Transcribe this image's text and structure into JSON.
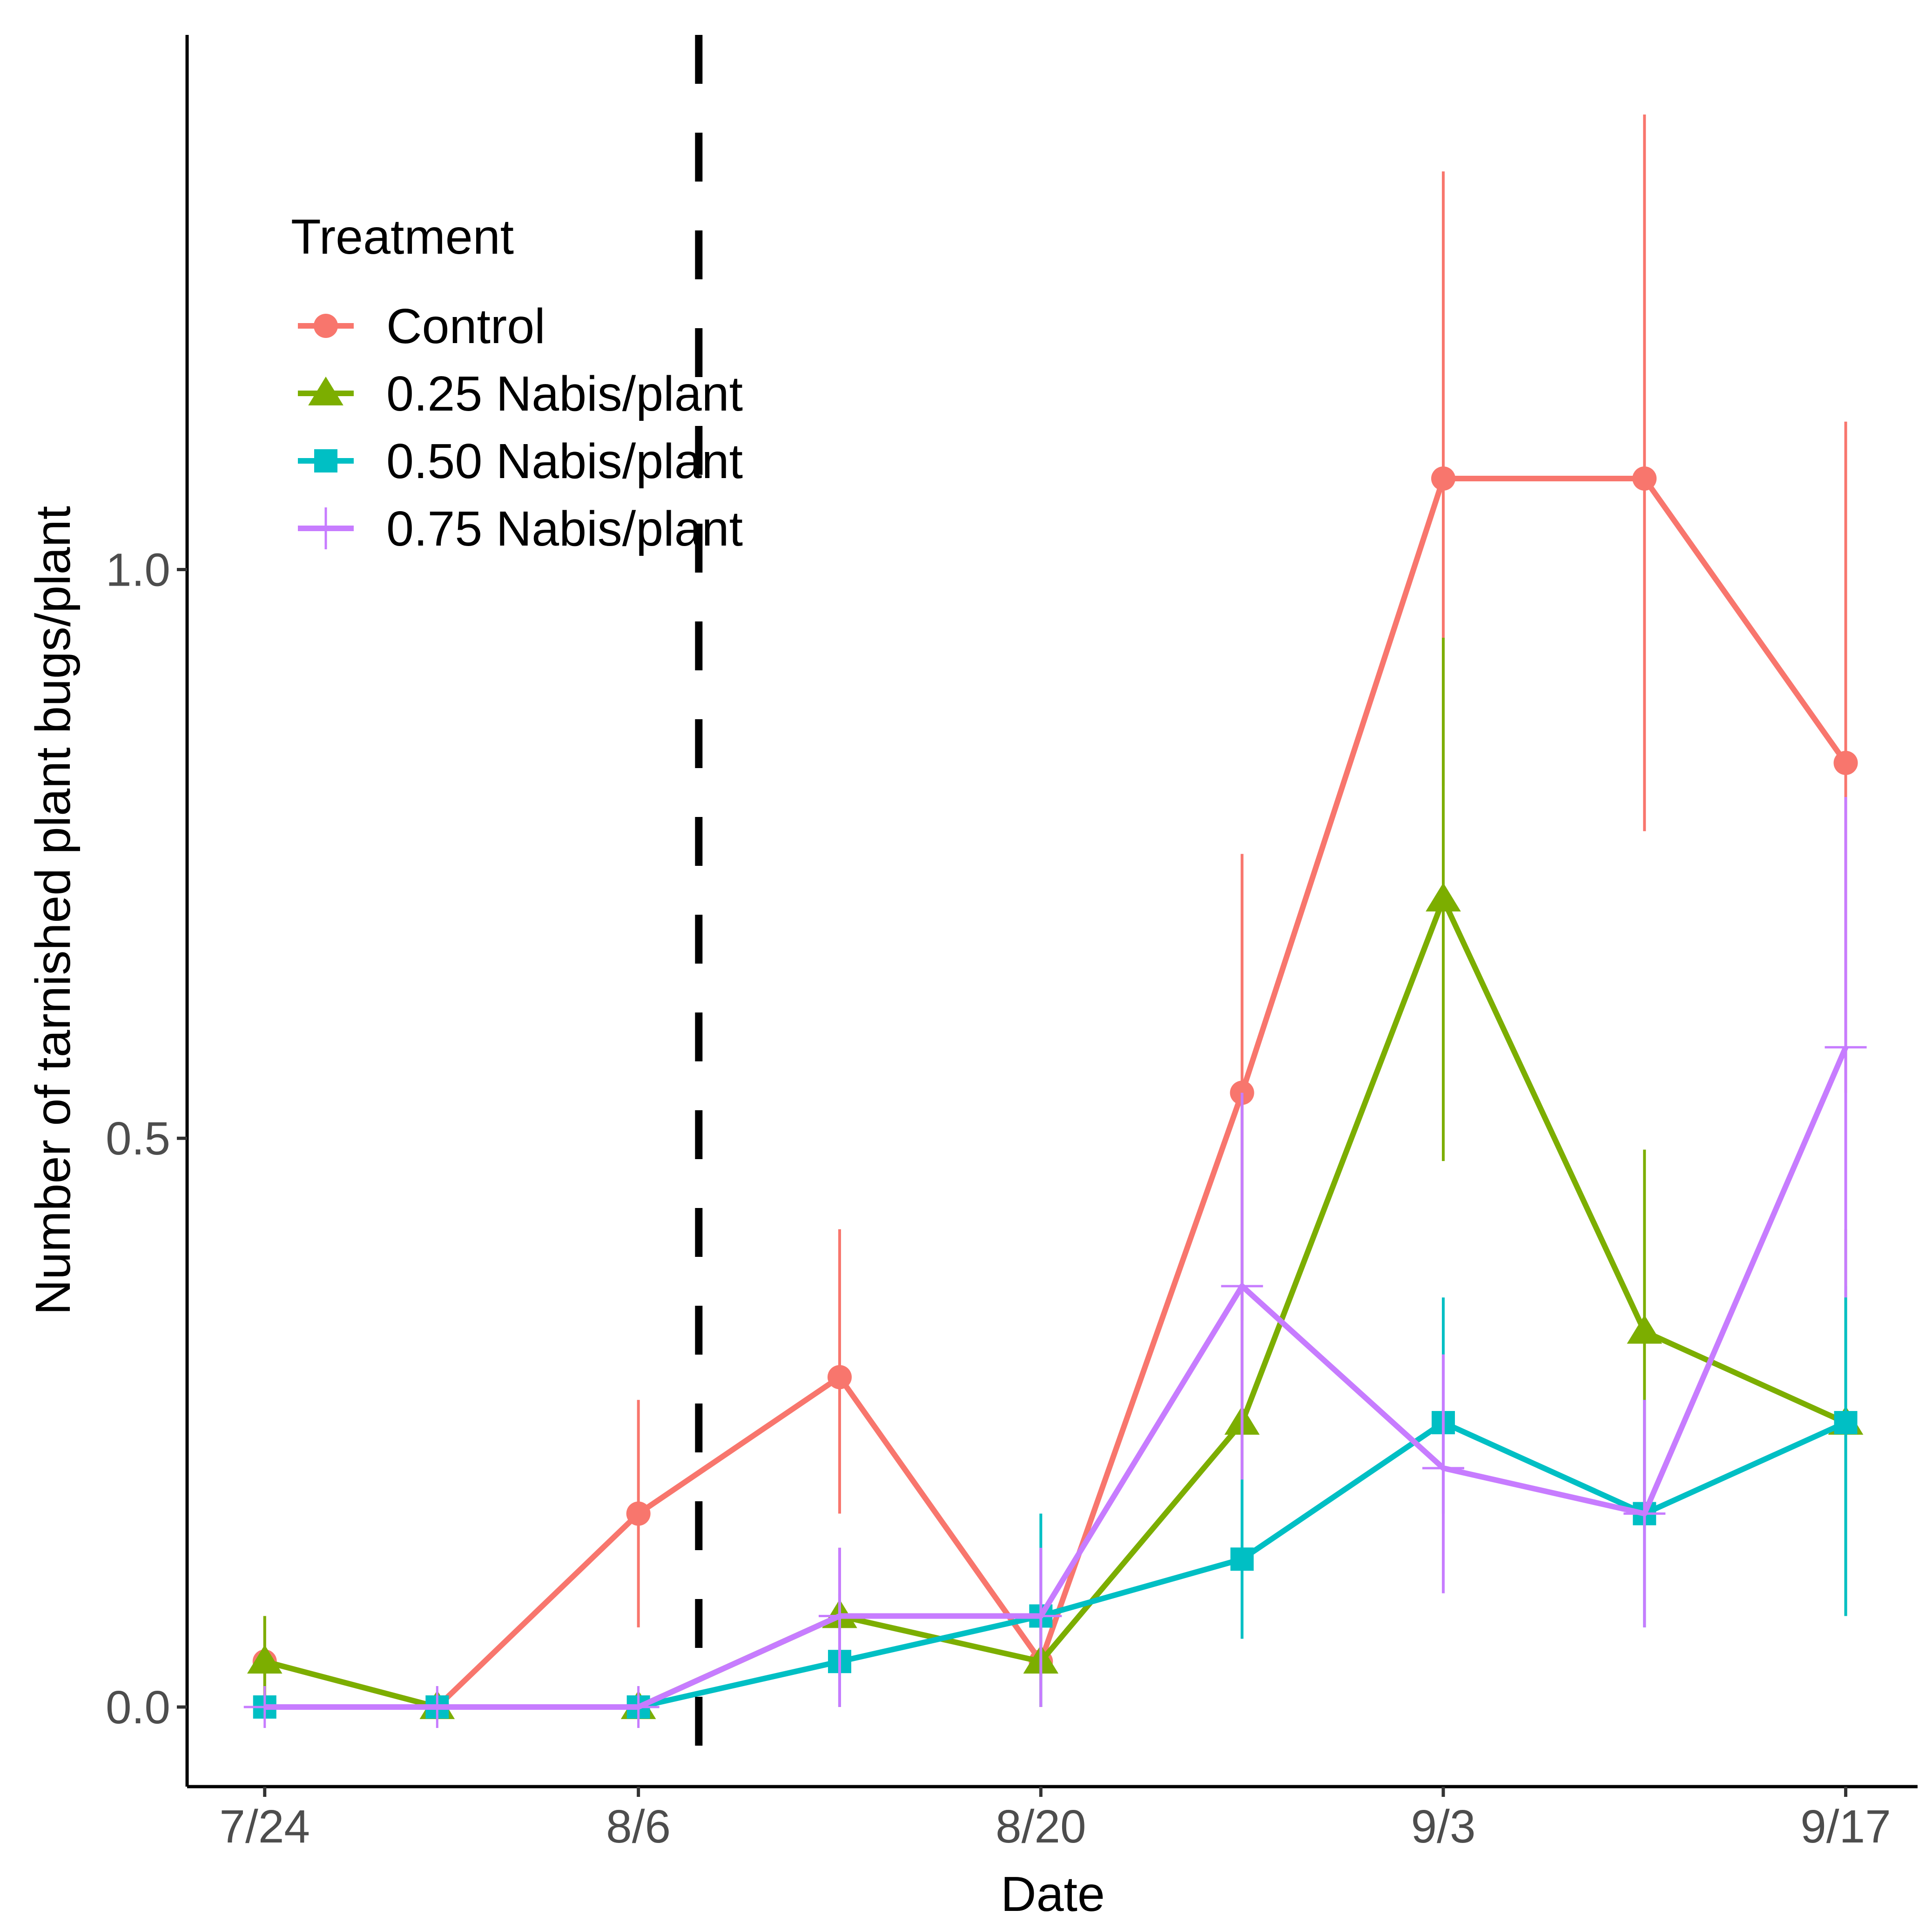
{
  "chart_data": {
    "type": "line",
    "xlabel": "Date",
    "ylabel": "Number of tarnished plant bugs/plant",
    "x_tick_labels": [
      "7/24",
      "8/6",
      "8/20",
      "9/3",
      "9/17"
    ],
    "y_tick_labels": [
      "0.0",
      "0.5",
      "1.0"
    ],
    "x_ticks": [
      0,
      13,
      27,
      41,
      55
    ],
    "y_ticks": [
      0,
      0.5,
      1.0
    ],
    "xlim": [
      -2.7,
      57.5
    ],
    "ylim": [
      -0.07,
      1.47
    ],
    "x": [
      0,
      6,
      13,
      20,
      27,
      34,
      41,
      48,
      55
    ],
    "vline": {
      "x": 15.1,
      "style": "dashed",
      "color": "#000000"
    },
    "legend": {
      "title": "Treatment",
      "position": "top-left"
    },
    "series": [
      {
        "name": "Control",
        "color": "#F8766D",
        "shape": "circle",
        "values": [
          0.04,
          0.0,
          0.17,
          0.29,
          0.04,
          0.54,
          1.08,
          1.08,
          0.83
        ],
        "err_low": [
          0.0,
          0.0,
          0.07,
          0.17,
          0.0,
          0.34,
          0.81,
          0.77,
          0.54
        ],
        "err_high": [
          0.08,
          0.0,
          0.27,
          0.42,
          0.08,
          0.75,
          1.35,
          1.4,
          1.13
        ]
      },
      {
        "name": "0.25 Nabis/plant",
        "color": "#7CAE00",
        "shape": "triangle",
        "values": [
          0.04,
          0.0,
          0.0,
          0.08,
          0.04,
          0.25,
          0.71,
          0.33,
          0.25
        ],
        "err_low": [
          0.0,
          0.0,
          0.0,
          0.0,
          0.0,
          0.2,
          0.48,
          0.17,
          0.08
        ],
        "err_high": [
          0.08,
          0.0,
          0.0,
          0.14,
          0.08,
          0.54,
          0.94,
          0.49,
          0.42
        ]
      },
      {
        "name": "0.50 Nabis/plant",
        "color": "#00BFC4",
        "shape": "square",
        "values": [
          0.0,
          0.0,
          0.0,
          0.04,
          0.08,
          0.13,
          0.25,
          0.17,
          0.25
        ],
        "err_low": [
          0.0,
          0.0,
          0.0,
          0.0,
          0.0,
          0.06,
          0.17,
          0.07,
          0.08
        ],
        "err_high": [
          0.0,
          0.0,
          0.0,
          0.1,
          0.17,
          0.2,
          0.36,
          0.27,
          0.37
        ]
      },
      {
        "name": "0.75 Nabis/plant",
        "color": "#C77CFF",
        "shape": "plus",
        "values": [
          0.0,
          0.0,
          0.0,
          0.08,
          0.08,
          0.37,
          0.21,
          0.17,
          0.58
        ],
        "err_low": [
          0.0,
          0.0,
          0.0,
          0.0,
          0.0,
          0.2,
          0.1,
          0.07,
          0.36
        ],
        "err_high": [
          0.0,
          0.0,
          0.0,
          0.14,
          0.14,
          0.54,
          0.31,
          0.27,
          0.8
        ]
      }
    ]
  }
}
